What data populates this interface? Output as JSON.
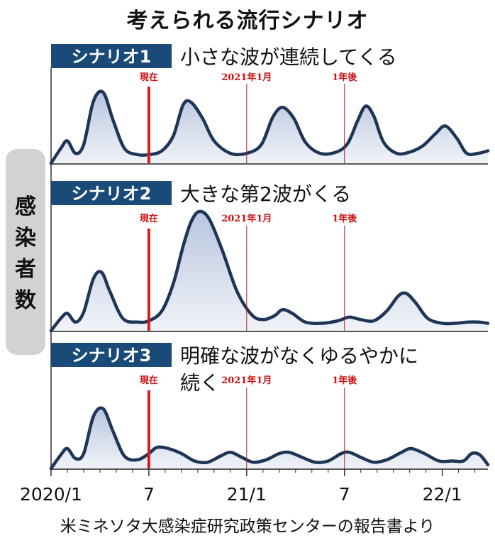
{
  "title": "考えられる流行シナリオ",
  "ylabel": "感染者数",
  "source": "米ミネソタ大感染症研究政策センターの報告書より",
  "colors": {
    "tag_bg": "#1a4a78",
    "curve": "#1e3556",
    "fill": "#b4c2dc",
    "now_line": "#d81c1c",
    "guide_line": "#b02020"
  },
  "chart_data": {
    "type": "area",
    "x_ticks": [
      {
        "t": 0,
        "label": "2020/1"
      },
      {
        "t": 6,
        "label": "7"
      },
      {
        "t": 12,
        "label": "21/1"
      },
      {
        "t": 18,
        "label": "7"
      },
      {
        "t": 24,
        "label": "22/1"
      }
    ],
    "markers": [
      {
        "t": 6,
        "label": "現在",
        "kind": "now"
      },
      {
        "t": 12,
        "label": "2021年1月",
        "kind": "guide"
      },
      {
        "t": 18,
        "label": "1年後",
        "kind": "guide"
      }
    ],
    "y_max": 1.0,
    "grid": false,
    "legend": "none",
    "panels": [
      {
        "tag": "シナリオ1",
        "heading": "小さな波が連続してくる",
        "points": [
          [
            0,
            0.0
          ],
          [
            0.6,
            0.12
          ],
          [
            1.0,
            0.18
          ],
          [
            1.5,
            0.08
          ],
          [
            2.0,
            0.15
          ],
          [
            2.6,
            0.5
          ],
          [
            3.2,
            0.57
          ],
          [
            3.8,
            0.35
          ],
          [
            4.5,
            0.12
          ],
          [
            5.3,
            0.07
          ],
          [
            6.0,
            0.07
          ],
          [
            6.8,
            0.1
          ],
          [
            7.5,
            0.22
          ],
          [
            8.1,
            0.47
          ],
          [
            8.6,
            0.49
          ],
          [
            9.3,
            0.36
          ],
          [
            10.0,
            0.18
          ],
          [
            11.0,
            0.08
          ],
          [
            12.0,
            0.08
          ],
          [
            12.9,
            0.15
          ],
          [
            13.6,
            0.37
          ],
          [
            14.2,
            0.45
          ],
          [
            14.9,
            0.36
          ],
          [
            15.6,
            0.17
          ],
          [
            16.5,
            0.08
          ],
          [
            17.5,
            0.09
          ],
          [
            18.2,
            0.16
          ],
          [
            18.8,
            0.34
          ],
          [
            19.3,
            0.46
          ],
          [
            19.8,
            0.38
          ],
          [
            20.4,
            0.17
          ],
          [
            21.2,
            0.08
          ],
          [
            22.0,
            0.09
          ],
          [
            22.8,
            0.14
          ],
          [
            23.6,
            0.24
          ],
          [
            24.2,
            0.3
          ],
          [
            24.9,
            0.2
          ],
          [
            25.5,
            0.08
          ],
          [
            26.2,
            0.08
          ],
          [
            26.8,
            0.1
          ]
        ]
      },
      {
        "tag": "シナリオ2",
        "heading": "大きな第2波がくる",
        "points": [
          [
            0,
            0.0
          ],
          [
            0.6,
            0.1
          ],
          [
            1.0,
            0.14
          ],
          [
            1.5,
            0.07
          ],
          [
            2.0,
            0.15
          ],
          [
            2.6,
            0.42
          ],
          [
            3.1,
            0.47
          ],
          [
            3.6,
            0.32
          ],
          [
            4.4,
            0.1
          ],
          [
            5.3,
            0.07
          ],
          [
            6.0,
            0.08
          ],
          [
            6.8,
            0.16
          ],
          [
            7.5,
            0.38
          ],
          [
            8.1,
            0.68
          ],
          [
            8.6,
            0.88
          ],
          [
            9.1,
            0.96
          ],
          [
            9.7,
            0.9
          ],
          [
            10.5,
            0.65
          ],
          [
            11.4,
            0.32
          ],
          [
            12.3,
            0.13
          ],
          [
            13.0,
            0.09
          ],
          [
            13.7,
            0.12
          ],
          [
            14.2,
            0.17
          ],
          [
            14.8,
            0.14
          ],
          [
            15.6,
            0.07
          ],
          [
            16.6,
            0.06
          ],
          [
            17.6,
            0.08
          ],
          [
            18.3,
            0.11
          ],
          [
            19.0,
            0.09
          ],
          [
            19.8,
            0.08
          ],
          [
            20.6,
            0.16
          ],
          [
            21.3,
            0.28
          ],
          [
            21.8,
            0.3
          ],
          [
            22.4,
            0.22
          ],
          [
            23.1,
            0.1
          ],
          [
            24.0,
            0.06
          ],
          [
            24.8,
            0.06
          ],
          [
            25.6,
            0.07
          ],
          [
            26.2,
            0.07
          ],
          [
            26.8,
            0.06
          ]
        ]
      },
      {
        "tag": "シナリオ3",
        "heading": "明確な波がなくゆるやかに",
        "heading2": "続く",
        "points": [
          [
            0,
            0.0
          ],
          [
            0.6,
            0.11
          ],
          [
            1.0,
            0.16
          ],
          [
            1.5,
            0.08
          ],
          [
            2.0,
            0.12
          ],
          [
            2.6,
            0.42
          ],
          [
            3.2,
            0.48
          ],
          [
            3.8,
            0.3
          ],
          [
            4.5,
            0.1
          ],
          [
            5.3,
            0.07
          ],
          [
            6.0,
            0.12
          ],
          [
            6.5,
            0.17
          ],
          [
            7.2,
            0.16
          ],
          [
            8.0,
            0.12
          ],
          [
            8.8,
            0.06
          ],
          [
            9.6,
            0.05
          ],
          [
            10.4,
            0.1
          ],
          [
            11.0,
            0.13
          ],
          [
            11.7,
            0.09
          ],
          [
            12.4,
            0.05
          ],
          [
            13.2,
            0.07
          ],
          [
            14.0,
            0.12
          ],
          [
            14.6,
            0.13
          ],
          [
            15.4,
            0.09
          ],
          [
            16.2,
            0.05
          ],
          [
            17.0,
            0.06
          ],
          [
            17.8,
            0.12
          ],
          [
            18.3,
            0.13
          ],
          [
            19.0,
            0.09
          ],
          [
            19.8,
            0.05
          ],
          [
            20.6,
            0.07
          ],
          [
            21.5,
            0.13
          ],
          [
            22.1,
            0.16
          ],
          [
            22.9,
            0.12
          ],
          [
            23.8,
            0.06
          ],
          [
            24.6,
            0.06
          ],
          [
            25.3,
            0.06
          ],
          [
            25.8,
            0.12
          ],
          [
            26.3,
            0.11
          ],
          [
            26.8,
            0.03
          ]
        ]
      }
    ]
  }
}
